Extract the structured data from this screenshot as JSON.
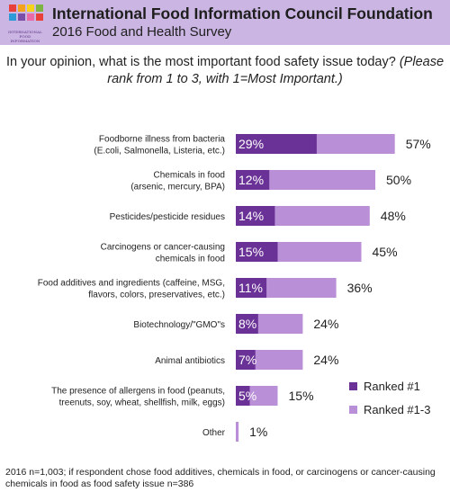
{
  "header": {
    "org_name": "International Food Information Council Foundation",
    "survey_name": "2016 Food and Health Survey",
    "logo_text_line1": "INTERNATIONAL",
    "logo_text_line2": "FOOD INFORMATION"
  },
  "question": {
    "text": "In your opinion, what is the most important food safety issue today?",
    "instruction": "(Please rank from 1 to 3, with 1=Most Important.)"
  },
  "colors": {
    "ranked1": "#6a3296",
    "ranked13": "#b98fd7",
    "header_bg": "#cbb6e3"
  },
  "chart_data": {
    "type": "bar",
    "orientation": "horizontal",
    "categories": [
      [
        "Foodborne illness from bacteria",
        "(E.coli, Salmonella, Listeria, etc.)"
      ],
      [
        "Chemicals in food",
        "(arsenic, mercury, BPA)"
      ],
      [
        "Pesticides/pesticide residues"
      ],
      [
        "Carcinogens or cancer-causing",
        "chemicals in food"
      ],
      [
        "Food additives and ingredients (caffeine, MSG,",
        "flavors, colors, preservatives, etc.)"
      ],
      [
        "Biotechnology/\"GMO\"s"
      ],
      [
        "Animal antibiotics"
      ],
      [
        "The presence of allergens in food (peanuts,",
        "treenuts, soy, wheat, shellfish, milk, eggs)"
      ],
      [
        "Other"
      ]
    ],
    "series": [
      {
        "name": "Ranked #1",
        "values": [
          29,
          12,
          14,
          15,
          11,
          8,
          7,
          5,
          null
        ]
      },
      {
        "name": "Ranked #1-3",
        "values": [
          57,
          50,
          48,
          45,
          36,
          24,
          24,
          15,
          1
        ]
      }
    ],
    "inner_labels": [
      "29%",
      "12%",
      "14%",
      "15%",
      "11%",
      "8%",
      "7%",
      "5%",
      ""
    ],
    "outer_labels": [
      "57%",
      "50%",
      "48%",
      "45%",
      "36%",
      "24%",
      "24%",
      "15%",
      "1%"
    ],
    "legend": [
      "Ranked #1",
      "Ranked #1-3"
    ],
    "legend_position": "lower-right",
    "xlim": [
      0,
      60
    ],
    "grid": false
  },
  "footnote": "2016 n=1,003; if respondent chose food additives, chemicals in food, or carcinogens or cancer-causing chemicals in food as food safety issue n=386"
}
